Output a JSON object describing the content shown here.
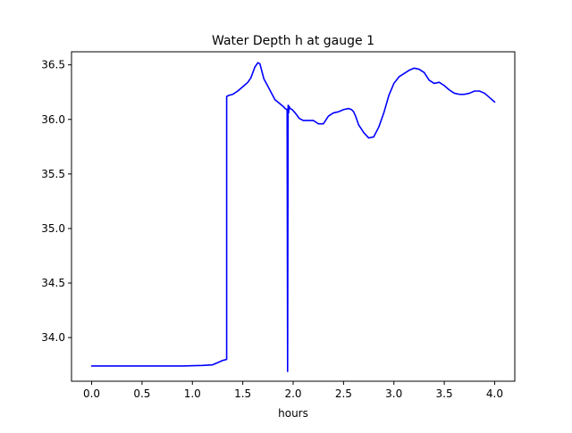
{
  "chart_data": {
    "type": "line",
    "title": "Water Depth h at gauge 1",
    "xlabel": "hours",
    "ylabel": "",
    "xlim": [
      -0.2,
      4.2
    ],
    "ylim": [
      33.6,
      36.62
    ],
    "xticks": [
      0.0,
      0.5,
      1.0,
      1.5,
      2.0,
      2.5,
      3.0,
      3.5,
      4.0
    ],
    "xtick_labels": [
      "0.0",
      "0.5",
      "1.0",
      "1.5",
      "2.0",
      "2.5",
      "3.0",
      "3.5",
      "4.0"
    ],
    "yticks": [
      34.0,
      34.5,
      35.0,
      35.5,
      36.0,
      36.5
    ],
    "ytick_labels": [
      "34.0",
      "34.5",
      "35.0",
      "35.5",
      "36.0",
      "36.5"
    ],
    "grid": false,
    "legend": false,
    "series": [
      {
        "color": "#0000ff",
        "x": [
          0.0,
          0.5,
          0.9,
          1.1,
          1.2,
          1.25,
          1.3,
          1.34,
          1.34,
          1.36,
          1.4,
          1.45,
          1.5,
          1.55,
          1.58,
          1.62,
          1.65,
          1.67,
          1.69,
          1.71,
          1.74,
          1.78,
          1.82,
          1.86,
          1.9,
          1.92,
          1.94,
          1.945,
          1.95,
          1.955,
          1.96,
          1.97,
          1.99,
          2.02,
          2.06,
          2.1,
          2.15,
          2.2,
          2.25,
          2.3,
          2.35,
          2.4,
          2.45,
          2.5,
          2.55,
          2.58,
          2.6,
          2.62,
          2.65,
          2.7,
          2.75,
          2.8,
          2.85,
          2.9,
          2.95,
          3.0,
          3.05,
          3.1,
          3.15,
          3.2,
          3.25,
          3.3,
          3.35,
          3.4,
          3.45,
          3.5,
          3.55,
          3.6,
          3.65,
          3.7,
          3.75,
          3.8,
          3.85,
          3.9,
          3.95,
          4.0
        ],
        "y": [
          33.74,
          33.74,
          33.74,
          33.745,
          33.75,
          33.77,
          33.79,
          33.8,
          36.21,
          36.22,
          36.23,
          36.26,
          36.3,
          36.34,
          36.38,
          36.48,
          36.52,
          36.51,
          36.44,
          36.37,
          36.32,
          36.25,
          36.18,
          36.15,
          36.12,
          36.1,
          36.09,
          33.69,
          36.13,
          36.06,
          36.12,
          36.1,
          36.09,
          36.06,
          36.01,
          35.99,
          35.99,
          35.99,
          35.96,
          35.96,
          36.03,
          36.06,
          36.07,
          36.09,
          36.1,
          36.09,
          36.07,
          36.03,
          35.95,
          35.88,
          35.83,
          35.84,
          35.93,
          36.06,
          36.22,
          36.33,
          36.39,
          36.42,
          36.45,
          36.47,
          36.46,
          36.43,
          36.36,
          36.33,
          36.34,
          36.31,
          36.27,
          36.24,
          36.23,
          36.23,
          36.24,
          36.26,
          36.26,
          36.24,
          36.2,
          36.16
        ]
      }
    ]
  }
}
